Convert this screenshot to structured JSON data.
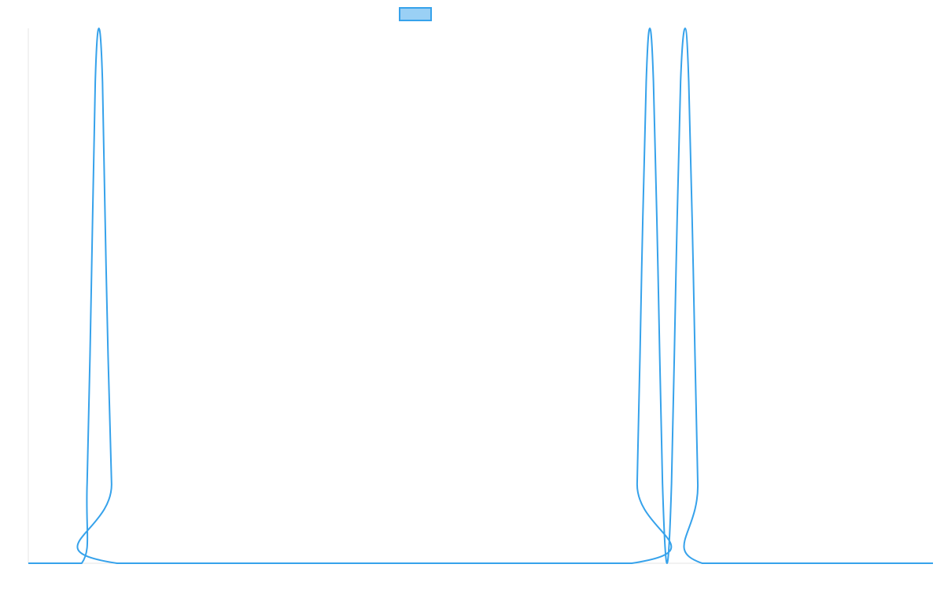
{
  "colors": {
    "series_line": "#36A2EB",
    "series_fill": "#9AD0F5",
    "axis_line": "#E5E5E5"
  },
  "chart_data": {
    "type": "line",
    "title": "",
    "xlabel": "",
    "ylabel": "",
    "grid": false,
    "legend": {
      "placement": "top-center",
      "entries": [
        {
          "label": ""
        }
      ]
    },
    "xlim": [
      0,
      100
    ],
    "ylim": [
      0,
      1
    ],
    "series": [
      {
        "label": "",
        "points": [
          [
            0,
            0
          ],
          [
            5.9,
            0
          ],
          [
            6.5,
            0.15
          ],
          [
            7.0,
            0.55
          ],
          [
            7.4,
            0.9
          ],
          [
            7.8,
            1.0
          ],
          [
            8.2,
            0.9
          ],
          [
            8.6,
            0.55
          ],
          [
            9.2,
            0.15
          ],
          [
            9.8,
            0
          ],
          [
            66.7,
            0
          ],
          [
            67.3,
            0.15
          ],
          [
            67.8,
            0.55
          ],
          [
            68.3,
            0.9
          ],
          [
            68.7,
            1.0
          ],
          [
            69.1,
            0.9
          ],
          [
            69.6,
            0.55
          ],
          [
            70.1,
            0.15
          ],
          [
            70.6,
            0
          ],
          [
            71.1,
            0.15
          ],
          [
            71.6,
            0.55
          ],
          [
            72.1,
            0.9
          ],
          [
            72.6,
            1.0
          ],
          [
            73.0,
            0.9
          ],
          [
            73.5,
            0.55
          ],
          [
            74.0,
            0.15
          ],
          [
            74.5,
            0
          ],
          [
            100,
            0
          ]
        ]
      }
    ]
  }
}
